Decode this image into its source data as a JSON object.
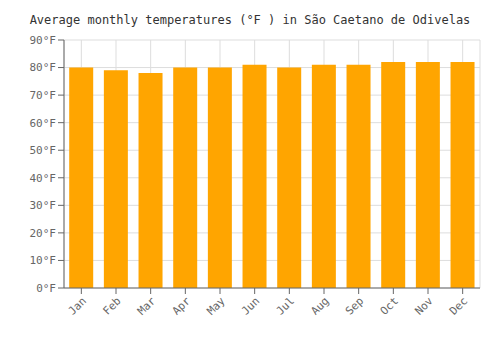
{
  "chart_data": {
    "type": "bar",
    "title": "Average monthly temperatures (°F ) in São Caetano de Odivelas",
    "categories": [
      "Jan",
      "Feb",
      "Mar",
      "Apr",
      "May",
      "Jun",
      "Jul",
      "Aug",
      "Sep",
      "Oct",
      "Nov",
      "Dec"
    ],
    "values": [
      80,
      79,
      78,
      80,
      80,
      81,
      80,
      81,
      81,
      82,
      82,
      82
    ],
    "color": "#FFA500",
    "ylim": [
      0,
      90
    ],
    "yticks": [
      {
        "value": 0,
        "label": "0°F"
      },
      {
        "value": 10,
        "label": "10°F"
      },
      {
        "value": 20,
        "label": "20°F"
      },
      {
        "value": 30,
        "label": "30°F"
      },
      {
        "value": 40,
        "label": "40°F"
      },
      {
        "value": 50,
        "label": "50°F"
      },
      {
        "value": 60,
        "label": "60°F"
      },
      {
        "value": 70,
        "label": "70°F"
      },
      {
        "value": 80,
        "label": "80°F"
      },
      {
        "value": 90,
        "label": "90°F"
      }
    ],
    "grid": true
  }
}
